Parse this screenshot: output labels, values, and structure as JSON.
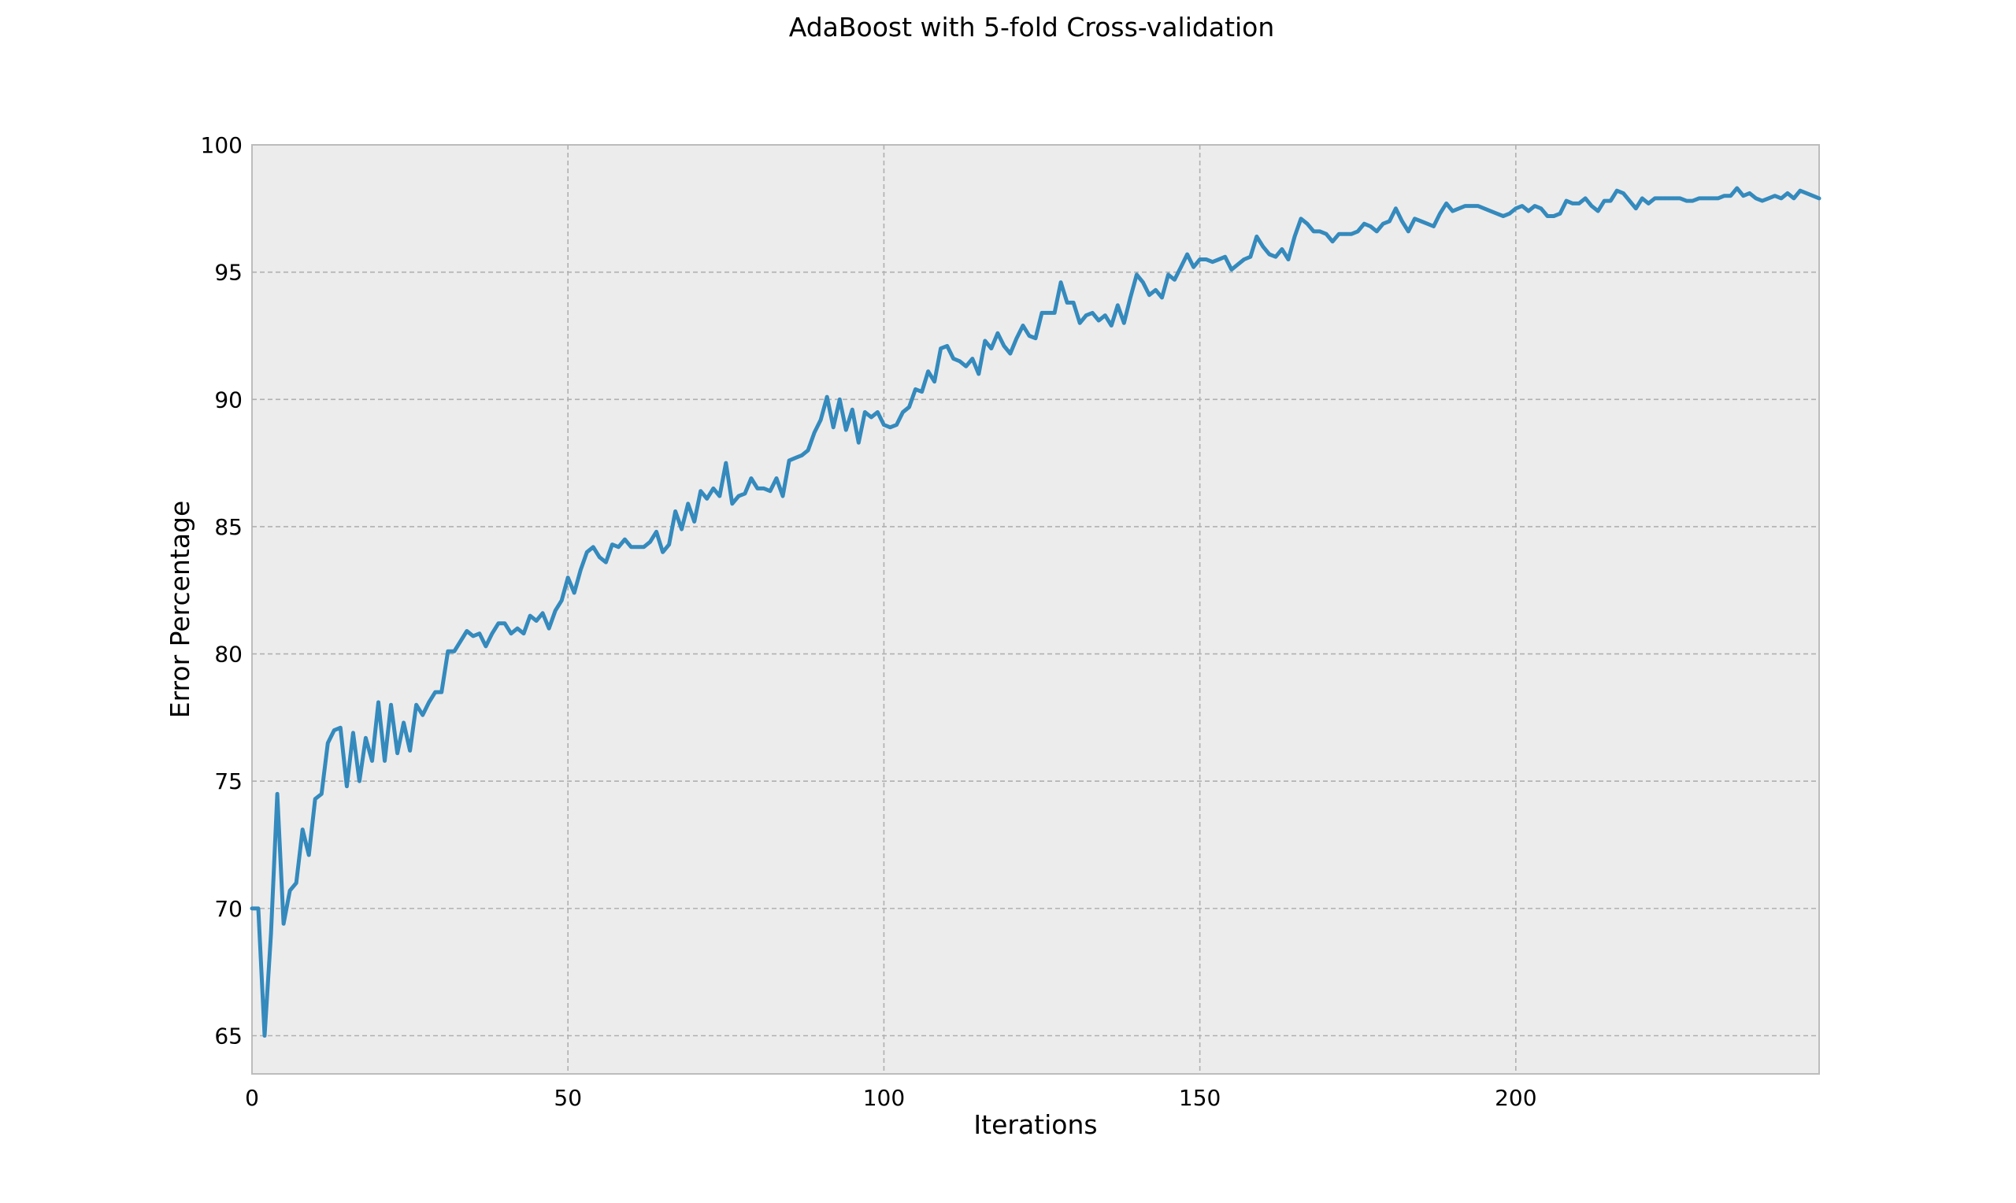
{
  "chart_data": {
    "type": "line",
    "title": "AdaBoost with 5-fold Cross-validation",
    "xlabel": "Iterations",
    "ylabel": "Error Percentage",
    "xlim": [
      0,
      248
    ],
    "ylim": [
      63.5,
      100
    ],
    "xticks": [
      0,
      50,
      100,
      150,
      200
    ],
    "yticks": [
      65,
      70,
      75,
      80,
      85,
      90,
      95,
      100
    ],
    "grid": true,
    "colors": {
      "series": "#348abd",
      "plot_background": "#ececec",
      "grid": "#b0b0b0"
    },
    "series": [
      {
        "x": [
          0,
          1,
          2,
          3,
          4,
          5,
          6,
          7,
          8,
          9,
          10,
          11,
          12,
          13,
          14,
          15,
          16,
          17,
          18,
          19,
          20,
          21,
          22,
          23,
          24,
          25,
          26,
          27,
          28,
          29,
          30,
          31,
          32,
          33,
          34,
          35,
          36,
          37,
          38,
          39,
          40,
          41,
          42,
          43,
          44,
          45,
          46,
          47,
          48,
          49,
          50,
          51,
          52,
          53,
          54,
          55,
          56,
          57,
          58,
          59,
          60,
          61,
          62,
          63,
          64,
          65,
          66,
          67,
          68,
          69,
          70,
          71,
          72,
          73,
          74,
          75,
          76,
          77,
          78,
          79,
          80,
          81,
          82,
          83,
          84,
          85,
          86,
          87,
          88,
          89,
          90,
          91,
          92,
          93,
          94,
          95,
          96,
          97,
          98,
          99,
          100,
          101,
          102,
          103,
          104,
          105,
          106,
          107,
          108,
          109,
          110,
          111,
          112,
          113,
          114,
          115,
          116,
          117,
          118,
          119,
          120,
          121,
          122,
          123,
          124,
          125,
          126,
          127,
          128,
          129,
          130,
          131,
          132,
          133,
          134,
          135,
          136,
          137,
          138,
          139,
          140,
          141,
          142,
          143,
          144,
          145,
          146,
          147,
          148,
          149,
          150,
          151,
          152,
          153,
          154,
          155,
          156,
          157,
          158,
          159,
          160,
          161,
          162,
          163,
          164,
          165,
          166,
          167,
          168,
          169,
          170,
          171,
          172,
          173,
          174,
          175,
          176,
          177,
          178,
          179,
          180,
          181,
          182,
          183,
          184,
          185,
          186,
          187,
          188,
          189,
          190,
          191,
          192,
          193,
          194,
          195,
          196,
          197,
          198,
          199,
          200,
          201,
          202,
          203,
          204,
          205,
          206,
          207,
          208,
          209,
          210,
          211,
          212,
          213,
          214,
          215,
          216,
          217,
          218,
          219,
          220,
          221,
          222,
          223,
          224,
          225,
          226,
          227,
          228,
          229,
          230,
          231,
          232,
          233,
          234,
          235,
          236,
          237,
          238,
          239,
          240,
          241,
          242,
          243,
          244,
          245,
          246,
          247,
          248
        ],
        "y": [
          70.0,
          70.0,
          65.0,
          69.0,
          74.5,
          69.4,
          70.7,
          71.0,
          73.1,
          72.1,
          74.3,
          74.5,
          76.5,
          77.0,
          77.1,
          74.8,
          76.9,
          75.0,
          76.7,
          75.8,
          78.1,
          75.8,
          78.0,
          76.1,
          77.3,
          76.2,
          78.0,
          77.6,
          78.1,
          78.5,
          78.5,
          80.1,
          80.1,
          80.5,
          80.9,
          80.7,
          80.8,
          80.3,
          80.8,
          81.2,
          81.2,
          80.8,
          81.0,
          80.8,
          81.5,
          81.3,
          81.6,
          81.0,
          81.7,
          82.1,
          83.0,
          82.4,
          83.3,
          84.0,
          84.2,
          83.8,
          83.6,
          84.3,
          84.2,
          84.5,
          84.2,
          84.2,
          84.2,
          84.4,
          84.8,
          84.0,
          84.3,
          85.6,
          84.9,
          85.9,
          85.2,
          86.4,
          86.1,
          86.5,
          86.2,
          87.5,
          85.9,
          86.2,
          86.3,
          86.9,
          86.5,
          86.5,
          86.4,
          86.9,
          86.2,
          87.6,
          87.7,
          87.8,
          88.0,
          88.7,
          89.2,
          90.1,
          88.9,
          90.0,
          88.8,
          89.6,
          88.3,
          89.5,
          89.3,
          89.5,
          89.0,
          88.9,
          89.0,
          89.5,
          89.7,
          90.4,
          90.3,
          91.1,
          90.7,
          92.0,
          92.1,
          91.6,
          91.5,
          91.3,
          91.6,
          91.0,
          92.3,
          92.0,
          92.6,
          92.1,
          91.8,
          92.4,
          92.9,
          92.5,
          92.4,
          93.4,
          93.4,
          93.4,
          94.6,
          93.8,
          93.8,
          93.0,
          93.3,
          93.4,
          93.1,
          93.3,
          92.9,
          93.7,
          93.0,
          94.0,
          94.9,
          94.6,
          94.1,
          94.3,
          94.0,
          94.9,
          94.7,
          95.2,
          95.7,
          95.2,
          95.5,
          95.5,
          95.4,
          95.5,
          95.6,
          95.1,
          95.3,
          95.5,
          95.6,
          96.4,
          96.0,
          95.7,
          95.6,
          95.9,
          95.5,
          96.4,
          97.1,
          96.9,
          96.6,
          96.6,
          96.5,
          96.2,
          96.5,
          96.5,
          96.5,
          96.6,
          96.9,
          96.8,
          96.6,
          96.9,
          97.0,
          97.5,
          97.0,
          96.6,
          97.1,
          97.0,
          96.9,
          96.8,
          97.3,
          97.7,
          97.4,
          97.5,
          97.6,
          97.6,
          97.6,
          97.5,
          97.4,
          97.3,
          97.2,
          97.3,
          97.5,
          97.6,
          97.4,
          97.6,
          97.5,
          97.2,
          97.2,
          97.3,
          97.8,
          97.7,
          97.7,
          97.9,
          97.6,
          97.4,
          97.8,
          97.8,
          98.2,
          98.1,
          97.8,
          97.5,
          97.9,
          97.7,
          97.9,
          97.9,
          97.9,
          97.9,
          97.9,
          97.8,
          97.8,
          97.9,
          97.9,
          97.9,
          97.9,
          98.0,
          98.0,
          98.3,
          98.0,
          98.1,
          97.9,
          97.8,
          97.9,
          98.0,
          97.9,
          98.1,
          97.9,
          98.2,
          98.1,
          98.0,
          97.9
        ]
      }
    ]
  }
}
